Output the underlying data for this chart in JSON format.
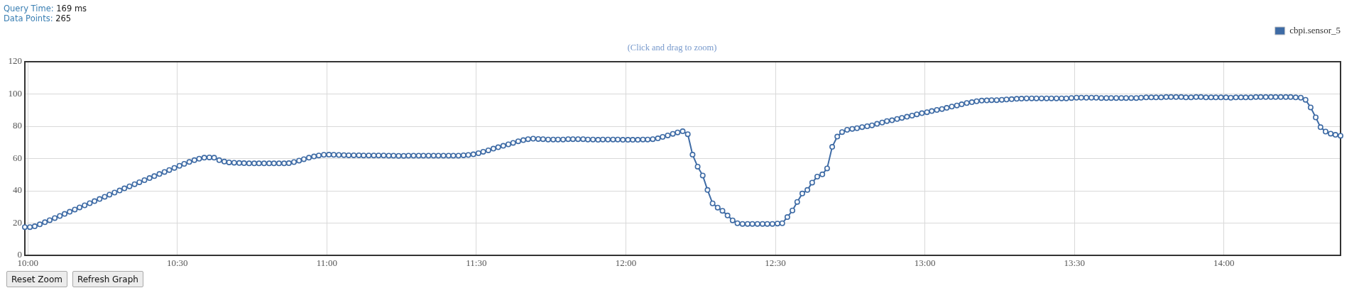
{
  "chart_data": {
    "type": "line",
    "subtitle": "(Click and drag to zoom)",
    "annotations": [
      "Query Time: 169 ms",
      "Data Points: 265",
      "Reset Zoom",
      "Refresh Graph"
    ],
    "xlim": [
      9.99,
      14.39
    ],
    "xticks": [
      {
        "value": 10,
        "label": "10:00"
      },
      {
        "value": 10.5,
        "label": "10:30"
      },
      {
        "value": 11,
        "label": "11:00"
      },
      {
        "value": 11.5,
        "label": "11:30"
      },
      {
        "value": 12,
        "label": "12:00"
      },
      {
        "value": 12.5,
        "label": "12:30"
      },
      {
        "value": 13,
        "label": "13:00"
      },
      {
        "value": 13.5,
        "label": "13:30"
      },
      {
        "value": 14,
        "label": "14:00"
      }
    ],
    "ylim": [
      0,
      120
    ],
    "yticks": [
      0,
      20,
      40,
      60,
      80,
      100,
      120
    ],
    "grid": true,
    "legend": "top right",
    "marker": "circle",
    "line_style": "solid",
    "x": [
      9.99,
      10.007,
      10.023,
      10.04,
      10.057,
      10.073,
      10.09,
      10.107,
      10.123,
      10.14,
      10.157,
      10.173,
      10.19,
      10.207,
      10.223,
      10.24,
      10.257,
      10.273,
      10.29,
      10.307,
      10.323,
      10.34,
      10.357,
      10.373,
      10.39,
      10.407,
      10.423,
      10.44,
      10.457,
      10.473,
      10.49,
      10.507,
      10.523,
      10.54,
      10.557,
      10.573,
      10.59,
      10.607,
      10.623,
      10.64,
      10.657,
      10.673,
      10.69,
      10.707,
      10.723,
      10.74,
      10.757,
      10.773,
      10.79,
      10.807,
      10.823,
      10.84,
      10.857,
      10.873,
      10.89,
      10.907,
      10.923,
      10.94,
      10.957,
      10.973,
      10.99,
      11.007,
      11.023,
      11.04,
      11.057,
      11.073,
      11.09,
      11.107,
      11.123,
      11.14,
      11.157,
      11.173,
      11.19,
      11.207,
      11.223,
      11.24,
      11.257,
      11.273,
      11.29,
      11.307,
      11.323,
      11.34,
      11.357,
      11.373,
      11.39,
      11.407,
      11.423,
      11.44,
      11.457,
      11.473,
      11.49,
      11.507,
      11.523,
      11.54,
      11.557,
      11.573,
      11.59,
      11.607,
      11.623,
      11.64,
      11.657,
      11.673,
      11.69,
      11.707,
      11.723,
      11.74,
      11.757,
      11.773,
      11.79,
      11.807,
      11.823,
      11.84,
      11.857,
      11.873,
      11.89,
      11.907,
      11.923,
      11.94,
      11.957,
      11.973,
      11.99,
      12.007,
      12.023,
      12.04,
      12.057,
      12.073,
      12.09,
      12.107,
      12.123,
      12.14,
      12.157,
      12.173,
      12.19,
      12.207,
      12.223,
      12.24,
      12.257,
      12.273,
      12.29,
      12.307,
      12.323,
      12.34,
      12.357,
      12.373,
      12.39,
      12.407,
      12.423,
      12.44,
      12.457,
      12.473,
      12.49,
      12.507,
      12.523,
      12.54,
      12.557,
      12.573,
      12.59,
      12.607,
      12.623,
      12.64,
      12.657,
      12.673,
      12.69,
      12.707,
      12.723,
      12.74,
      12.757,
      12.773,
      12.79,
      12.807,
      12.823,
      12.84,
      12.857,
      12.873,
      12.89,
      12.907,
      12.923,
      12.94,
      12.957,
      12.973,
      12.99,
      13.007,
      13.023,
      13.04,
      13.057,
      13.073,
      13.09,
      13.107,
      13.123,
      13.14,
      13.157,
      13.173,
      13.19,
      13.207,
      13.223,
      13.24,
      13.257,
      13.273,
      13.29,
      13.307,
      13.323,
      13.34,
      13.357,
      13.373,
      13.39,
      13.407,
      13.423,
      13.44,
      13.457,
      13.473,
      13.49,
      13.507,
      13.523,
      13.54,
      13.557,
      13.573,
      13.59,
      13.607,
      13.623,
      13.64,
      13.657,
      13.673,
      13.69,
      13.707,
      13.723,
      13.74,
      13.757,
      13.773,
      13.79,
      13.807,
      13.823,
      13.84,
      13.857,
      13.873,
      13.89,
      13.907,
      13.923,
      13.94,
      13.957,
      13.973,
      13.99,
      14.007,
      14.023,
      14.04,
      14.057,
      14.073,
      14.09,
      14.107,
      14.123,
      14.14,
      14.157,
      14.173,
      14.19,
      14.207,
      14.223,
      14.24,
      14.257,
      14.273,
      14.29,
      14.307,
      14.323,
      14.34,
      14.357,
      14.373,
      14.39
    ],
    "series": [
      {
        "name": "cbpi.sensor_5",
        "color": "#3e6ba5",
        "values": [
          17.5,
          17.5,
          18.0,
          19.2,
          20.5,
          21.8,
          23.1,
          24.4,
          25.7,
          27.0,
          28.4,
          29.7,
          31.0,
          32.3,
          33.6,
          34.9,
          36.3,
          37.6,
          38.9,
          40.2,
          41.5,
          42.8,
          44.1,
          45.3,
          46.6,
          47.9,
          49.1,
          50.4,
          51.7,
          52.9,
          54.2,
          55.5,
          56.7,
          57.9,
          59.0,
          59.9,
          60.5,
          60.7,
          60.5,
          59.0,
          58.1,
          57.6,
          57.4,
          57.2,
          57.1,
          57.0,
          57.0,
          57.0,
          57.0,
          57.0,
          57.0,
          57.0,
          57.0,
          57.1,
          57.8,
          58.7,
          59.6,
          60.5,
          61.3,
          61.9,
          62.3,
          62.4,
          62.3,
          62.2,
          62.1,
          62.0,
          62.0,
          62.0,
          61.9,
          61.9,
          61.9,
          61.9,
          61.9,
          61.8,
          61.8,
          61.7,
          61.7,
          61.8,
          61.8,
          61.8,
          61.8,
          61.8,
          61.8,
          61.8,
          61.8,
          61.8,
          61.8,
          61.8,
          62.0,
          62.2,
          62.6,
          63.3,
          64.2,
          65.1,
          66.1,
          67.0,
          67.9,
          68.8,
          69.7,
          70.7,
          71.4,
          72.0,
          72.3,
          72.1,
          72.0,
          71.8,
          71.8,
          71.8,
          71.8,
          72.0,
          72.0,
          72.0,
          72.0,
          71.8,
          71.8,
          71.6,
          71.8,
          71.8,
          71.8,
          71.8,
          71.6,
          71.6,
          71.6,
          71.6,
          71.8,
          71.8,
          72.0,
          72.5,
          73.4,
          74.3,
          75.3,
          76.2,
          76.9,
          75.1,
          62.4,
          55.0,
          49.5,
          40.5,
          32.2,
          29.6,
          27.6,
          24.7,
          21.7,
          19.9,
          19.5,
          19.5,
          19.5,
          19.5,
          19.5,
          19.5,
          19.5,
          19.7,
          19.9,
          23.7,
          27.8,
          33.1,
          38.3,
          40.5,
          45.1,
          48.8,
          50.2,
          53.9,
          67.2,
          73.6,
          76.4,
          77.8,
          78.4,
          78.8,
          79.5,
          80.0,
          80.6,
          81.5,
          82.3,
          83.2,
          83.7,
          84.5,
          85.2,
          85.9,
          86.6,
          87.4,
          88.1,
          88.7,
          89.4,
          90.1,
          90.7,
          91.4,
          92.2,
          92.9,
          93.6,
          94.4,
          94.9,
          95.5,
          95.9,
          96.0,
          96.2,
          96.2,
          96.4,
          96.6,
          96.8,
          97.0,
          97.1,
          97.3,
          97.3,
          97.3,
          97.3,
          97.3,
          97.3,
          97.3,
          97.3,
          97.3,
          97.5,
          97.7,
          97.7,
          97.7,
          97.7,
          97.7,
          97.5,
          97.5,
          97.5,
          97.5,
          97.5,
          97.5,
          97.5,
          97.5,
          97.7,
          97.9,
          97.9,
          97.9,
          97.9,
          98.1,
          98.1,
          98.1,
          98.1,
          97.9,
          97.9,
          98.1,
          98.1,
          97.9,
          97.9,
          97.9,
          97.9,
          97.9,
          97.7,
          97.9,
          97.9,
          97.9,
          97.9,
          98.1,
          98.1,
          98.1,
          98.1,
          98.1,
          98.1,
          98.1,
          98.1,
          97.9,
          97.7,
          96.4,
          91.7,
          85.5,
          79.4,
          76.7,
          75.4,
          74.7,
          74.1
        ]
      }
    ]
  }
}
